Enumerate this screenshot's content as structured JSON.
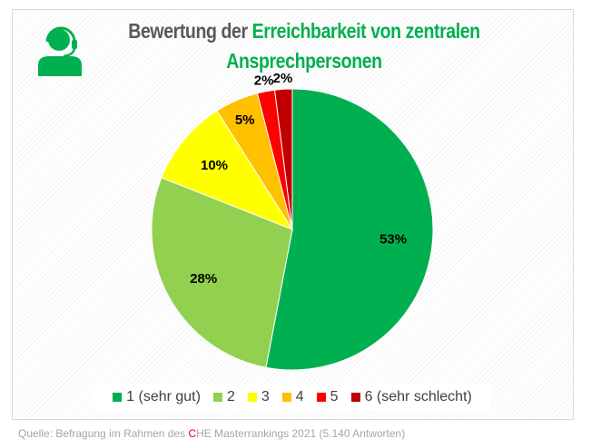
{
  "chart_data": {
    "type": "pie",
    "title_part1": "Bewertung der ",
    "title_part2": "Erreichbarkeit von zentralen Ansprechpersonen",
    "categories": [
      "1 (sehr gut)",
      "2",
      "3",
      "4",
      "5",
      "6 (sehr schlecht)"
    ],
    "values": [
      53,
      28,
      10,
      5,
      2,
      2
    ],
    "labels": [
      "53%",
      "28%",
      "10%",
      "5%",
      "2%",
      "2%"
    ],
    "colors": [
      "#00b050",
      "#92d050",
      "#ffff00",
      "#ffc000",
      "#ff0000",
      "#c00000"
    ],
    "legend_position": "bottom",
    "start_angle": "top, clockwise"
  },
  "icon": "headset-person-icon",
  "source": {
    "prefix": "Quelle: Befragung im Rahmen des ",
    "c": "C",
    "suffix": "HE Masterrankings 2021 (5.140 Antworten)"
  }
}
